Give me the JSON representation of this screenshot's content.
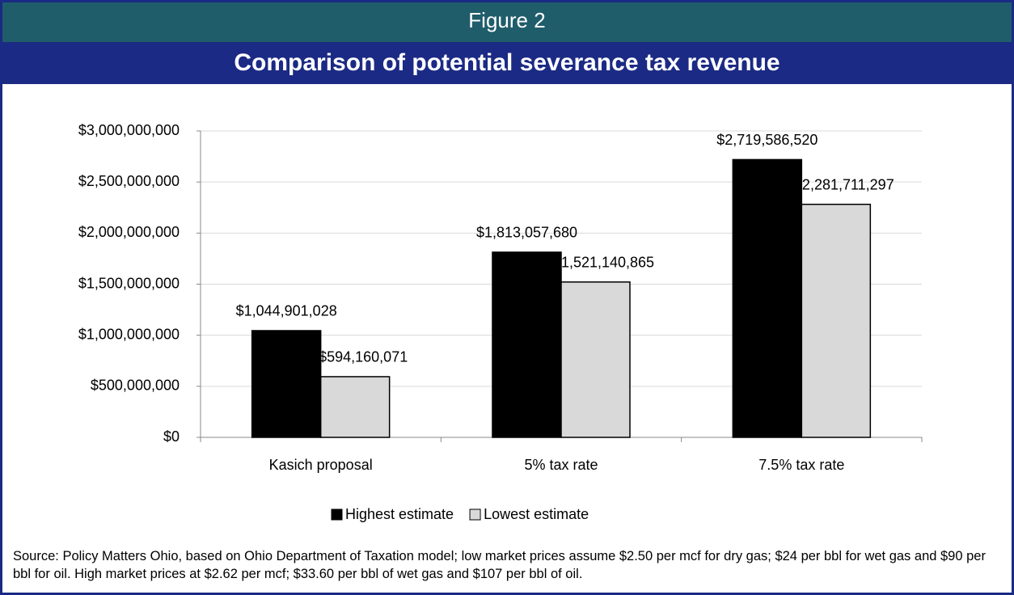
{
  "chart_data": {
    "type": "bar",
    "figure_label": "Figure 2",
    "title": "Comparison of potential severance tax revenue",
    "categories": [
      "Kasich proposal",
      "5% tax rate",
      "7.5% tax rate"
    ],
    "series": [
      {
        "name": "Highest estimate",
        "color": "#000000",
        "values": [
          1044901028,
          1813057680,
          2719586520
        ],
        "value_labels": [
          "$1,044,901,028",
          "$1,813,057,680",
          "$2,719,586,520"
        ]
      },
      {
        "name": "Lowest estimate",
        "color": "#d9d9d9",
        "values": [
          594160071,
          1521140865,
          2281711297
        ],
        "value_labels": [
          "$594,160,071",
          "$1,521,140,865",
          "$2,281,711,297"
        ]
      }
    ],
    "ylim": [
      0,
      3000000000
    ],
    "yticks": [
      {
        "value": 0,
        "label": "$0"
      },
      {
        "value": 500000000,
        "label": "$500,000,000"
      },
      {
        "value": 1000000000,
        "label": "$1,000,000,000"
      },
      {
        "value": 1500000000,
        "label": "$1,500,000,000"
      },
      {
        "value": 2000000000,
        "label": "$2,000,000,000"
      },
      {
        "value": 2500000000,
        "label": "$2,500,000,000"
      },
      {
        "value": 3000000000,
        "label": "$3,000,000,000"
      }
    ],
    "grid": true,
    "legend": "bottom",
    "note": "Source: Policy Matters Ohio, based on Ohio Department of Taxation model; low market prices assume $2.50 per mcf for dry gas; $24 per bbl for wet gas and $90 per bbl for oil. High market prices at $2.62 per mcf; $33.60 per bbl of wet gas and $107 per bbl of oil."
  }
}
